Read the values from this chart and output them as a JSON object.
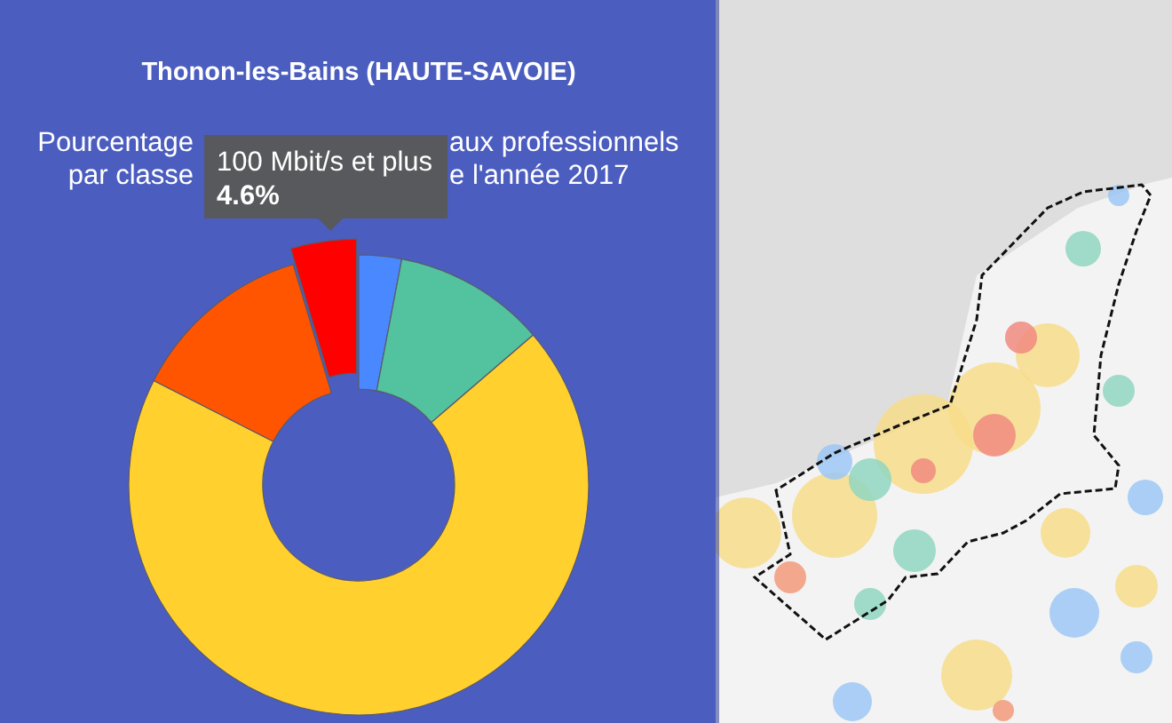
{
  "chart_data": {
    "type": "donut",
    "title": "Thonon-les-Bains (HAUTE-SAVOIE)",
    "annotations": [
      "Pourcentage",
      "aux professionnels",
      "par classe",
      "e l'année 2017"
    ],
    "categories": [
      null,
      null,
      null,
      null,
      "100 Mbit/s et plus"
    ],
    "values": [
      3.0,
      10.7,
      68.8,
      12.9,
      4.6
    ],
    "colors": [
      "#4a88ff",
      "#52c39e",
      "#ffd02e",
      "#ff5500",
      "#ff0000"
    ],
    "value_labels": [
      null,
      null,
      null,
      null,
      "4.6%"
    ]
  }
}
